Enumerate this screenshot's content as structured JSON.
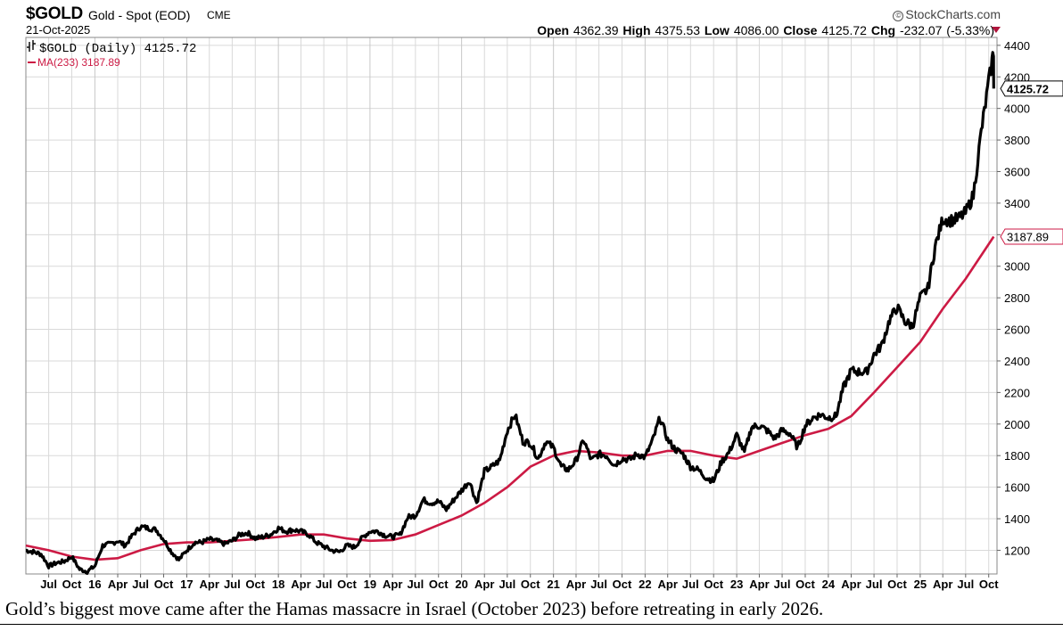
{
  "header": {
    "symbol": "$GOLD",
    "description": "Gold - Spot (EOD)",
    "exchange": "CME",
    "date": "21-Oct-2025",
    "brand": "StockCharts.com",
    "brand_icon": "copyright-icon",
    "ohlc": {
      "open_label": "Open",
      "open": "4362.39",
      "high_label": "High",
      "high": "4375.53",
      "low_label": "Low",
      "low": "4086.00",
      "close_label": "Close",
      "close": "4125.72",
      "chg_label": "Chg",
      "chg": "-232.07 (-5.33%)"
    }
  },
  "caption": "Gold’s biggest move came after the Hamas massacre in Israel (October 2023) before retreating in early 2026.",
  "chart_data": {
    "type": "line",
    "x_unit": "date (YYYY-MM)",
    "ylim": [
      1050,
      4450
    ],
    "yticks": [
      1200,
      1400,
      1600,
      1800,
      2000,
      2200,
      2400,
      2600,
      2800,
      3000,
      3200,
      3400,
      3600,
      3800,
      4000,
      4200,
      4400
    ],
    "grid": true,
    "legend_placement": "top-left",
    "axis_side": "right",
    "colors": {
      "price": "#000000",
      "ma": "#cc1a44",
      "grid": "#d9d9d9"
    },
    "legend": [
      {
        "text": "$GOLD (Daily) 4125.72",
        "icon": "ohlc-bar-icon",
        "color": "#000000"
      },
      {
        "text": "MA(233) 3187.89",
        "icon": "line-swatch-icon",
        "color": "#cc1a44"
      }
    ],
    "price_tag": "4125.72",
    "ma_tag": "3187.89",
    "xticks": [
      {
        "d": "2015-07",
        "t": "Jul"
      },
      {
        "d": "2015-10",
        "t": "Oct"
      },
      {
        "d": "2016-01",
        "t": "16",
        "bold": true
      },
      {
        "d": "2016-04",
        "t": "Apr"
      },
      {
        "d": "2016-07",
        "t": "Jul"
      },
      {
        "d": "2016-10",
        "t": "Oct"
      },
      {
        "d": "2017-01",
        "t": "17",
        "bold": true
      },
      {
        "d": "2017-04",
        "t": "Apr"
      },
      {
        "d": "2017-07",
        "t": "Jul"
      },
      {
        "d": "2017-10",
        "t": "Oct"
      },
      {
        "d": "2018-01",
        "t": "18",
        "bold": true
      },
      {
        "d": "2018-04",
        "t": "Apr"
      },
      {
        "d": "2018-07",
        "t": "Jul"
      },
      {
        "d": "2018-10",
        "t": "Oct"
      },
      {
        "d": "2019-01",
        "t": "19",
        "bold": true
      },
      {
        "d": "2019-04",
        "t": "Apr"
      },
      {
        "d": "2019-07",
        "t": "Jul"
      },
      {
        "d": "2019-10",
        "t": "Oct"
      },
      {
        "d": "2020-01",
        "t": "20",
        "bold": true
      },
      {
        "d": "2020-04",
        "t": "Apr"
      },
      {
        "d": "2020-07",
        "t": "Jul"
      },
      {
        "d": "2020-10",
        "t": "Oct"
      },
      {
        "d": "2021-01",
        "t": "21",
        "bold": true
      },
      {
        "d": "2021-04",
        "t": "Apr"
      },
      {
        "d": "2021-07",
        "t": "Jul"
      },
      {
        "d": "2021-10",
        "t": "Oct"
      },
      {
        "d": "2022-01",
        "t": "22",
        "bold": true
      },
      {
        "d": "2022-04",
        "t": "Apr"
      },
      {
        "d": "2022-07",
        "t": "Jul"
      },
      {
        "d": "2022-10",
        "t": "Oct"
      },
      {
        "d": "2023-01",
        "t": "23",
        "bold": true
      },
      {
        "d": "2023-04",
        "t": "Apr"
      },
      {
        "d": "2023-07",
        "t": "Jul"
      },
      {
        "d": "2023-10",
        "t": "Oct"
      },
      {
        "d": "2024-01",
        "t": "24",
        "bold": true
      },
      {
        "d": "2024-04",
        "t": "Apr"
      },
      {
        "d": "2024-07",
        "t": "Jul"
      },
      {
        "d": "2024-10",
        "t": "Oct"
      },
      {
        "d": "2025-01",
        "t": "25",
        "bold": true
      },
      {
        "d": "2025-04",
        "t": "Apr"
      },
      {
        "d": "2025-07",
        "t": "Jul"
      },
      {
        "d": "2025-10",
        "t": "Oct"
      }
    ],
    "series": [
      {
        "name": "$GOLD (Daily)",
        "points": [
          [
            "2015-04",
            1200
          ],
          [
            "2015-05",
            1190
          ],
          [
            "2015-06",
            1175
          ],
          [
            "2015-07",
            1100
          ],
          [
            "2015-08",
            1120
          ],
          [
            "2015-09",
            1130
          ],
          [
            "2015-10",
            1160
          ],
          [
            "2015-11",
            1080
          ],
          [
            "2015-12",
            1065
          ],
          [
            "2016-01",
            1100
          ],
          [
            "2016-02",
            1230
          ],
          [
            "2016-03",
            1240
          ],
          [
            "2016-04",
            1260
          ],
          [
            "2016-05",
            1230
          ],
          [
            "2016-06",
            1300
          ],
          [
            "2016-07",
            1350
          ],
          [
            "2016-08",
            1340
          ],
          [
            "2016-09",
            1330
          ],
          [
            "2016-10",
            1270
          ],
          [
            "2016-11",
            1190
          ],
          [
            "2016-12",
            1140
          ],
          [
            "2017-01",
            1200
          ],
          [
            "2017-02",
            1250
          ],
          [
            "2017-03",
            1250
          ],
          [
            "2017-04",
            1270
          ],
          [
            "2017-05",
            1260
          ],
          [
            "2017-06",
            1240
          ],
          [
            "2017-07",
            1260
          ],
          [
            "2017-08",
            1300
          ],
          [
            "2017-09",
            1310
          ],
          [
            "2017-10",
            1275
          ],
          [
            "2017-11",
            1285
          ],
          [
            "2017-12",
            1300
          ],
          [
            "2018-01",
            1340
          ],
          [
            "2018-02",
            1320
          ],
          [
            "2018-03",
            1330
          ],
          [
            "2018-04",
            1320
          ],
          [
            "2018-05",
            1300
          ],
          [
            "2018-06",
            1250
          ],
          [
            "2018-07",
            1225
          ],
          [
            "2018-08",
            1200
          ],
          [
            "2018-09",
            1190
          ],
          [
            "2018-10",
            1230
          ],
          [
            "2018-11",
            1220
          ],
          [
            "2018-12",
            1280
          ],
          [
            "2019-01",
            1320
          ],
          [
            "2019-02",
            1320
          ],
          [
            "2019-03",
            1295
          ],
          [
            "2019-04",
            1285
          ],
          [
            "2019-05",
            1300
          ],
          [
            "2019-06",
            1410
          ],
          [
            "2019-07",
            1420
          ],
          [
            "2019-08",
            1520
          ],
          [
            "2019-09",
            1500
          ],
          [
            "2019-10",
            1510
          ],
          [
            "2019-11",
            1460
          ],
          [
            "2019-12",
            1520
          ],
          [
            "2020-01",
            1580
          ],
          [
            "2020-02",
            1640
          ],
          [
            "2020-03",
            1500
          ],
          [
            "2020-04",
            1700
          ],
          [
            "2020-05",
            1730
          ],
          [
            "2020-06",
            1770
          ],
          [
            "2020-07",
            1960
          ],
          [
            "2020-08",
            2060
          ],
          [
            "2020-09",
            1890
          ],
          [
            "2020-10",
            1880
          ],
          [
            "2020-11",
            1780
          ],
          [
            "2020-12",
            1890
          ],
          [
            "2021-01",
            1850
          ],
          [
            "2021-02",
            1730
          ],
          [
            "2021-03",
            1710
          ],
          [
            "2021-04",
            1770
          ],
          [
            "2021-05",
            1900
          ],
          [
            "2021-06",
            1770
          ],
          [
            "2021-07",
            1810
          ],
          [
            "2021-08",
            1800
          ],
          [
            "2021-09",
            1740
          ],
          [
            "2021-10",
            1780
          ],
          [
            "2021-11",
            1775
          ],
          [
            "2021-12",
            1810
          ],
          [
            "2022-01",
            1790
          ],
          [
            "2022-02",
            1900
          ],
          [
            "2022-03",
            2040
          ],
          [
            "2022-04",
            1900
          ],
          [
            "2022-05",
            1840
          ],
          [
            "2022-06",
            1810
          ],
          [
            "2022-07",
            1730
          ],
          [
            "2022-08",
            1710
          ],
          [
            "2022-09",
            1660
          ],
          [
            "2022-10",
            1640
          ],
          [
            "2022-11",
            1760
          ],
          [
            "2022-12",
            1820
          ],
          [
            "2023-01",
            1930
          ],
          [
            "2023-02",
            1820
          ],
          [
            "2023-03",
            1980
          ],
          [
            "2023-04",
            1990
          ],
          [
            "2023-05",
            1960
          ],
          [
            "2023-06",
            1910
          ],
          [
            "2023-07",
            1960
          ],
          [
            "2023-08",
            1940
          ],
          [
            "2023-09",
            1850
          ],
          [
            "2023-10",
            1990
          ],
          [
            "2023-11",
            2040
          ],
          [
            "2023-12",
            2060
          ],
          [
            "2024-01",
            2040
          ],
          [
            "2024-02",
            2050
          ],
          [
            "2024-03",
            2230
          ],
          [
            "2024-04",
            2340
          ],
          [
            "2024-05",
            2330
          ],
          [
            "2024-06",
            2330
          ],
          [
            "2024-07",
            2440
          ],
          [
            "2024-08",
            2500
          ],
          [
            "2024-09",
            2660
          ],
          [
            "2024-10",
            2740
          ],
          [
            "2024-11",
            2650
          ],
          [
            "2024-12",
            2620
          ],
          [
            "2025-01",
            2800
          ],
          [
            "2025-02",
            2860
          ],
          [
            "2025-03",
            3120
          ],
          [
            "2025-04",
            3300
          ],
          [
            "2025-05",
            3290
          ],
          [
            "2025-06",
            3300
          ],
          [
            "2025-07",
            3340
          ],
          [
            "2025-08",
            3450
          ],
          [
            "2025-09",
            3850
          ],
          [
            "2025-10-14",
            4300
          ],
          [
            "2025-10-20",
            4360
          ],
          [
            "2025-10-21",
            4125.72
          ]
        ]
      },
      {
        "name": "MA(233)",
        "points": [
          [
            "2015-04",
            1230
          ],
          [
            "2015-07",
            1200
          ],
          [
            "2015-10",
            1160
          ],
          [
            "2016-01",
            1140
          ],
          [
            "2016-04",
            1150
          ],
          [
            "2016-07",
            1200
          ],
          [
            "2016-10",
            1240
          ],
          [
            "2017-01",
            1250
          ],
          [
            "2017-04",
            1250
          ],
          [
            "2017-07",
            1260
          ],
          [
            "2017-10",
            1270
          ],
          [
            "2018-01",
            1285
          ],
          [
            "2018-04",
            1300
          ],
          [
            "2018-07",
            1300
          ],
          [
            "2018-10",
            1275
          ],
          [
            "2019-01",
            1260
          ],
          [
            "2019-04",
            1265
          ],
          [
            "2019-07",
            1300
          ],
          [
            "2019-10",
            1360
          ],
          [
            "2020-01",
            1420
          ],
          [
            "2020-04",
            1500
          ],
          [
            "2020-07",
            1600
          ],
          [
            "2020-10",
            1730
          ],
          [
            "2021-01",
            1800
          ],
          [
            "2021-04",
            1830
          ],
          [
            "2021-07",
            1820
          ],
          [
            "2021-10",
            1800
          ],
          [
            "2022-01",
            1800
          ],
          [
            "2022-04",
            1830
          ],
          [
            "2022-07",
            1830
          ],
          [
            "2022-10",
            1800
          ],
          [
            "2023-01",
            1780
          ],
          [
            "2023-04",
            1830
          ],
          [
            "2023-07",
            1880
          ],
          [
            "2023-10",
            1930
          ],
          [
            "2024-01",
            1970
          ],
          [
            "2024-04",
            2050
          ],
          [
            "2024-07",
            2200
          ],
          [
            "2024-10",
            2360
          ],
          [
            "2025-01",
            2520
          ],
          [
            "2025-04",
            2730
          ],
          [
            "2025-07",
            2920
          ],
          [
            "2025-10-21",
            3187.89
          ]
        ]
      }
    ]
  }
}
